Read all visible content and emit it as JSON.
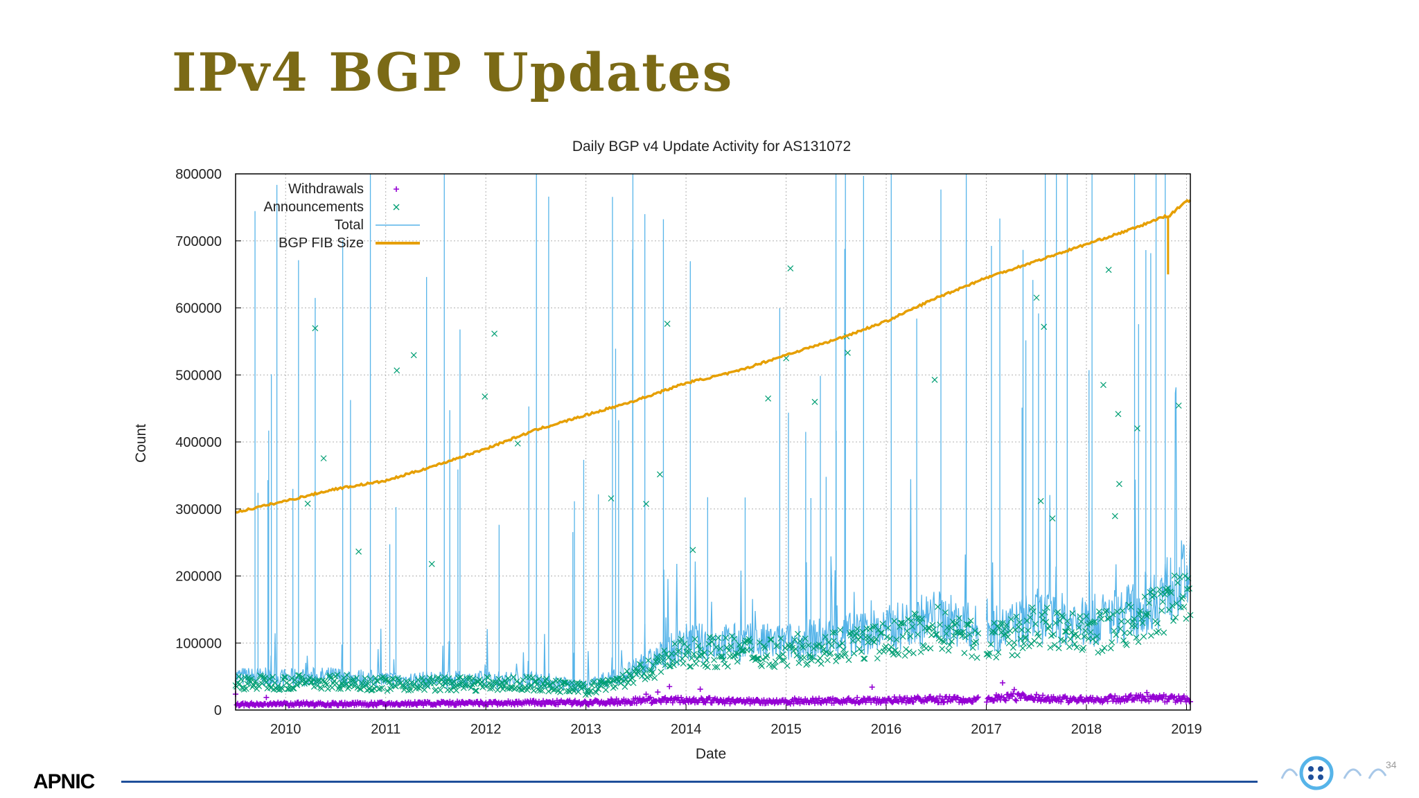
{
  "slide": {
    "title": "IPv4 BGP Updates",
    "logo_text": "APNIC",
    "page_number": "34"
  },
  "colors": {
    "title": "#7b6a16",
    "withdrawals": "#9400d3",
    "announcements": "#009e73",
    "total": "#56b4e9",
    "fib": "#e69f00",
    "footer_rule": "#1f4f9a"
  },
  "chart_data": {
    "type": "line",
    "title": "Daily BGP v4 Update Activity for AS131072",
    "xlabel": "Date",
    "ylabel": "Count",
    "xlim": [
      "2009-07-01",
      "2019-01-15"
    ],
    "ylim": [
      0,
      800000
    ],
    "x_ticks": [
      "2010",
      "2011",
      "2012",
      "2013",
      "2014",
      "2015",
      "2016",
      "2017",
      "2018",
      "2019"
    ],
    "y_ticks": [
      "0",
      "100000",
      "200000",
      "300000",
      "400000",
      "500000",
      "600000",
      "700000",
      "800000"
    ],
    "grid": true,
    "legend_position": "top-left",
    "legend": [
      "Withdrawals",
      "Announcements",
      "Total",
      "BGP FIB Size"
    ],
    "series": [
      {
        "name": "BGP FIB Size",
        "style": "line",
        "x": [
          "2009-07",
          "2010-01",
          "2010-07",
          "2011-01",
          "2011-07",
          "2012-01",
          "2012-07",
          "2013-01",
          "2013-07",
          "2014-01",
          "2014-07",
          "2015-01",
          "2015-07",
          "2016-01",
          "2016-07",
          "2017-01",
          "2017-07",
          "2018-01",
          "2018-07",
          "2018-10",
          "2018-11",
          "2019-01"
        ],
        "values": [
          295000,
          312000,
          330000,
          342000,
          365000,
          390000,
          418000,
          440000,
          462000,
          488000,
          505000,
          530000,
          553000,
          580000,
          615000,
          645000,
          670000,
          695000,
          720000,
          735000,
          738000,
          760000
        ]
      },
      {
        "name": "Total",
        "style": "line",
        "x": [
          "2009-07",
          "2010-01",
          "2010-07",
          "2011-01",
          "2011-07",
          "2012-01",
          "2012-07",
          "2013-01",
          "2013-07",
          "2014-01",
          "2014-07",
          "2015-01",
          "2015-07",
          "2016-01",
          "2016-07",
          "2016-12",
          "2017-03",
          "2017-07",
          "2018-01",
          "2018-07",
          "2019-01"
        ],
        "values": [
          50000,
          48000,
          50000,
          45000,
          45000,
          45000,
          45000,
          35000,
          60000,
          100000,
          100000,
          100000,
          110000,
          120000,
          140000,
          120000,
          120000,
          140000,
          130000,
          150000,
          200000
        ]
      },
      {
        "name": "Announcements",
        "style": "points",
        "x": [
          "2009-07",
          "2010-01",
          "2010-07",
          "2011-01",
          "2011-07",
          "2012-01",
          "2012-07",
          "2013-01",
          "2013-07",
          "2014-01",
          "2014-07",
          "2015-01",
          "2015-07",
          "2016-01",
          "2016-07",
          "2016-12",
          "2017-03",
          "2017-07",
          "2018-01",
          "2018-07",
          "2019-01"
        ],
        "values": [
          40000,
          40000,
          42000,
          38000,
          38000,
          38000,
          38000,
          30000,
          50000,
          85000,
          85000,
          85000,
          95000,
          100000,
          120000,
          100000,
          100000,
          120000,
          110000,
          125000,
          170000
        ]
      },
      {
        "name": "Withdrawals",
        "style": "points",
        "x": [
          "2009-07",
          "2010-01",
          "2010-07",
          "2011-01",
          "2011-07",
          "2012-01",
          "2012-07",
          "2013-01",
          "2013-07",
          "2014-01",
          "2014-07",
          "2015-01",
          "2015-07",
          "2016-01",
          "2016-07",
          "2016-12",
          "2017-03",
          "2017-07",
          "2018-01",
          "2018-07",
          "2019-01"
        ],
        "values": [
          8000,
          9000,
          9000,
          9000,
          10000,
          10000,
          11000,
          11000,
          14000,
          15000,
          13000,
          13000,
          14000,
          15000,
          16000,
          15000,
          20000,
          18000,
          15000,
          18000,
          16000
        ]
      }
    ]
  }
}
